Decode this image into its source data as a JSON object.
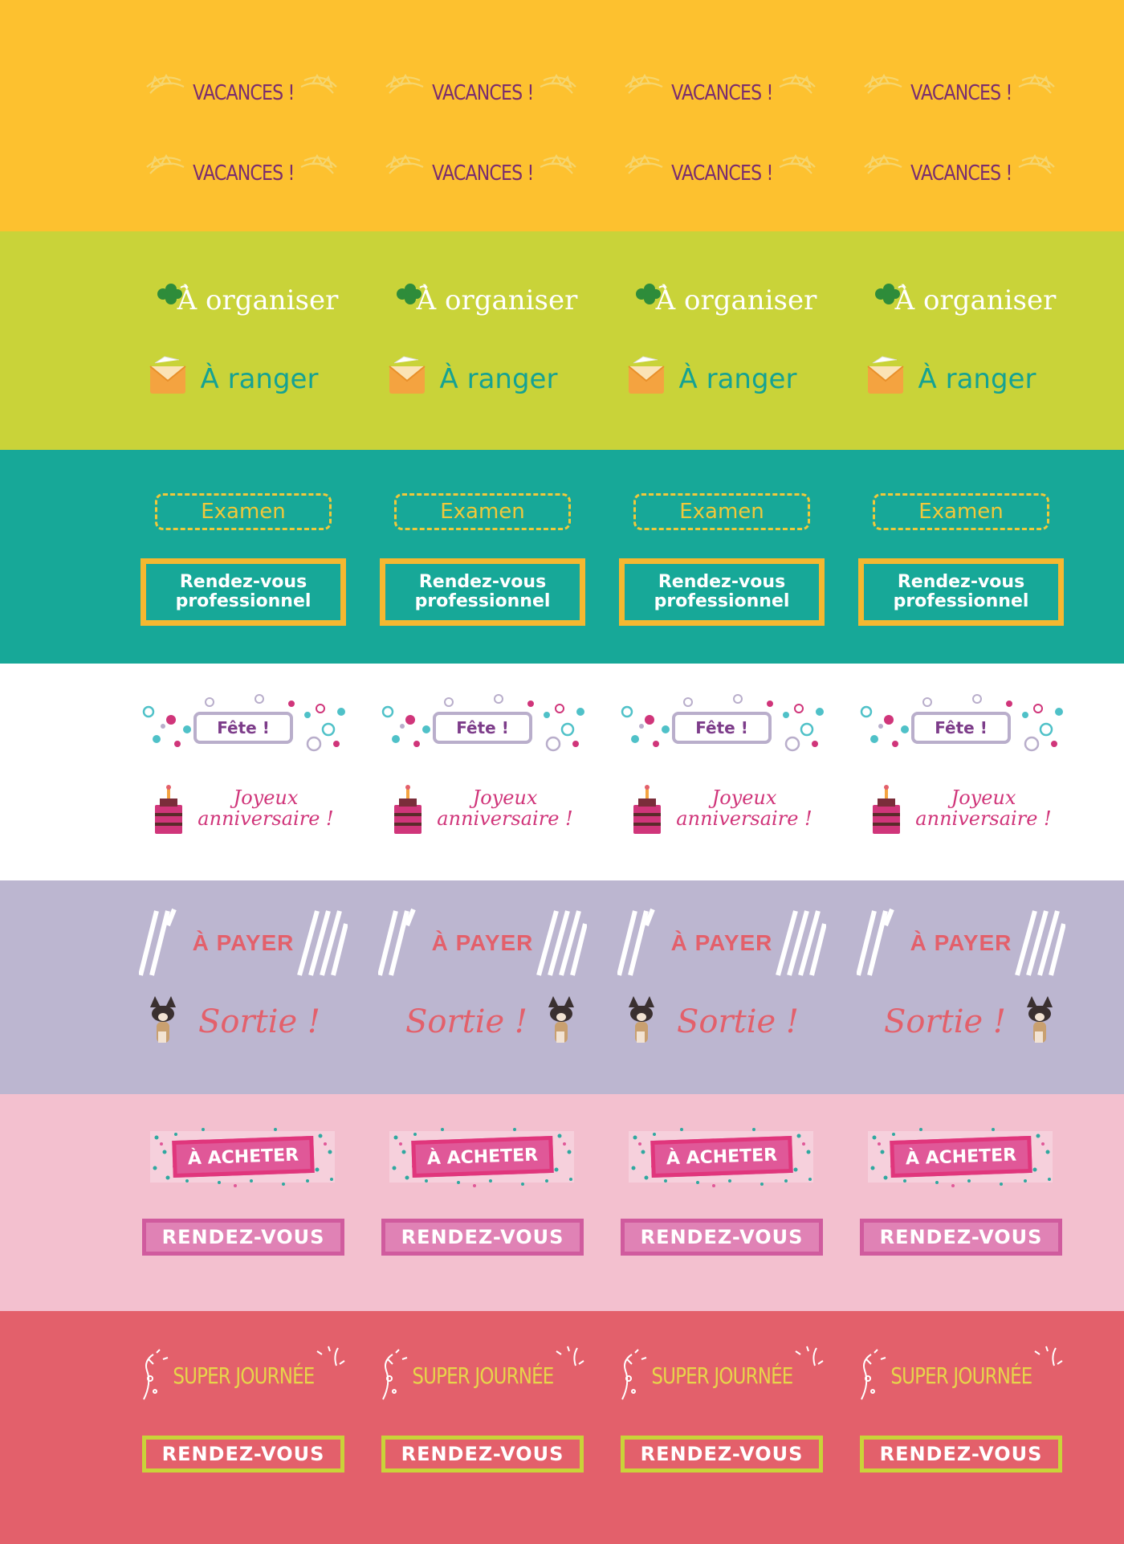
{
  "colors": {
    "band_vacances": "#fdc12f",
    "band_organiser": "#c9d339",
    "band_examen": "#17a898",
    "band_fete": "#ffffff",
    "band_payer": "#bcb6d0",
    "band_acheter": "#f3c0cf",
    "band_super": "#e3606b",
    "vacances_text": "#7a2d6e",
    "ranger_text": "#15a293",
    "examen_text": "#f0c83a",
    "frame_yellow": "#f5b830",
    "fete_text": "#7d3d8a",
    "anniv_text": "#d0357a",
    "payer_text": "#e3606b",
    "acheter_text": "#ffffff",
    "rdv_pink": "#d05b9e",
    "super_text": "#e7d54a",
    "rdv_green": "#c9d339"
  },
  "stickers": {
    "vacances": "VACANCES !",
    "organiser": "À organiser",
    "ranger": "À ranger",
    "examen": "Examen",
    "rdv_pro": "Rendez-vous professionnel",
    "fete": "Fête !",
    "anniversaire": "Joyeux anniversaire !",
    "payer": "À PAYER",
    "sortie": "Sortie !",
    "acheter": "À ACHETER",
    "rendez_vous": "RENDEZ-VOUS",
    "super_journee": "SUPER JOURNÉE"
  },
  "icons": {
    "vacances": "bunting-icon",
    "organiser": "clover-icon",
    "ranger": "envelope-icon",
    "anniversaire": "cake-icon",
    "sortie": "dog-icon"
  }
}
